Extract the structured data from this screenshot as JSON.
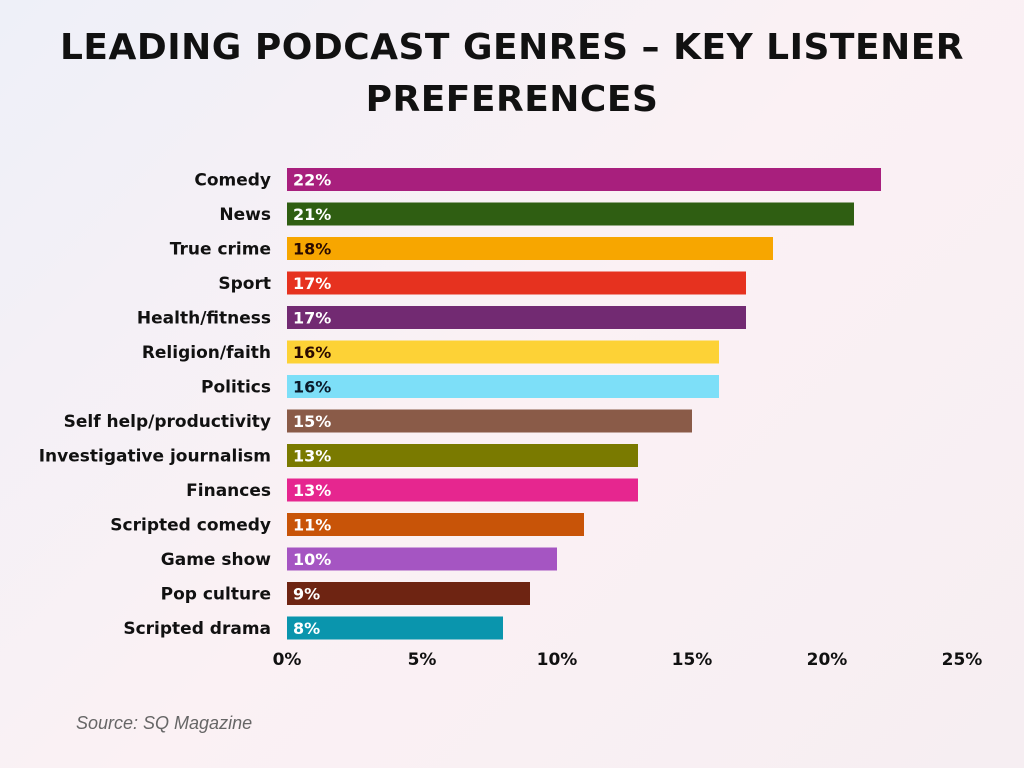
{
  "chart_data": {
    "type": "bar",
    "orientation": "horizontal",
    "title": "LEADING PODCAST GENRES – KEY LISTENER PREFERENCES",
    "categories": [
      "Comedy",
      "News",
      "True crime",
      "Sport",
      "Health/fitness",
      "Religion/faith",
      "Politics",
      "Self help/productivity",
      "Investigative journalism",
      "Finances",
      "Scripted comedy",
      "Game show",
      "Pop culture",
      "Scripted drama"
    ],
    "values": [
      22,
      21,
      18,
      17,
      17,
      16,
      16,
      15,
      13,
      13,
      11,
      10,
      9,
      8
    ],
    "data_labels": [
      "22%",
      "21%",
      "18%",
      "17%",
      "17%",
      "16%",
      "16%",
      "15%",
      "13%",
      "13%",
      "11%",
      "10%",
      "9%",
      "8%"
    ],
    "colors": [
      "#a81f7d",
      "#2f5e12",
      "#f7a600",
      "#e6321f",
      "#722a72",
      "#fdd236",
      "#7ddff8",
      "#8a5b48",
      "#7a7a00",
      "#e6268f",
      "#c85408",
      "#a555c2",
      "#6e2412",
      "#0a95ad"
    ],
    "label_colors": [
      "#ffffff",
      "#ffffff",
      "#2a0a00",
      "#ffffff",
      "#ffffff",
      "#2a0a00",
      "#0a1a2a",
      "#ffffff",
      "#ffffff",
      "#ffffff",
      "#ffffff",
      "#ffffff",
      "#ffffff",
      "#ffffff"
    ],
    "xlim": [
      0,
      25
    ],
    "xticks": [
      0,
      5,
      10,
      15,
      20,
      25
    ],
    "xtick_labels": [
      "0%",
      "5%",
      "10%",
      "15%",
      "20%",
      "25%"
    ],
    "xlabel": "",
    "ylabel": "",
    "grid": false
  },
  "source": "Source: SQ Magazine"
}
